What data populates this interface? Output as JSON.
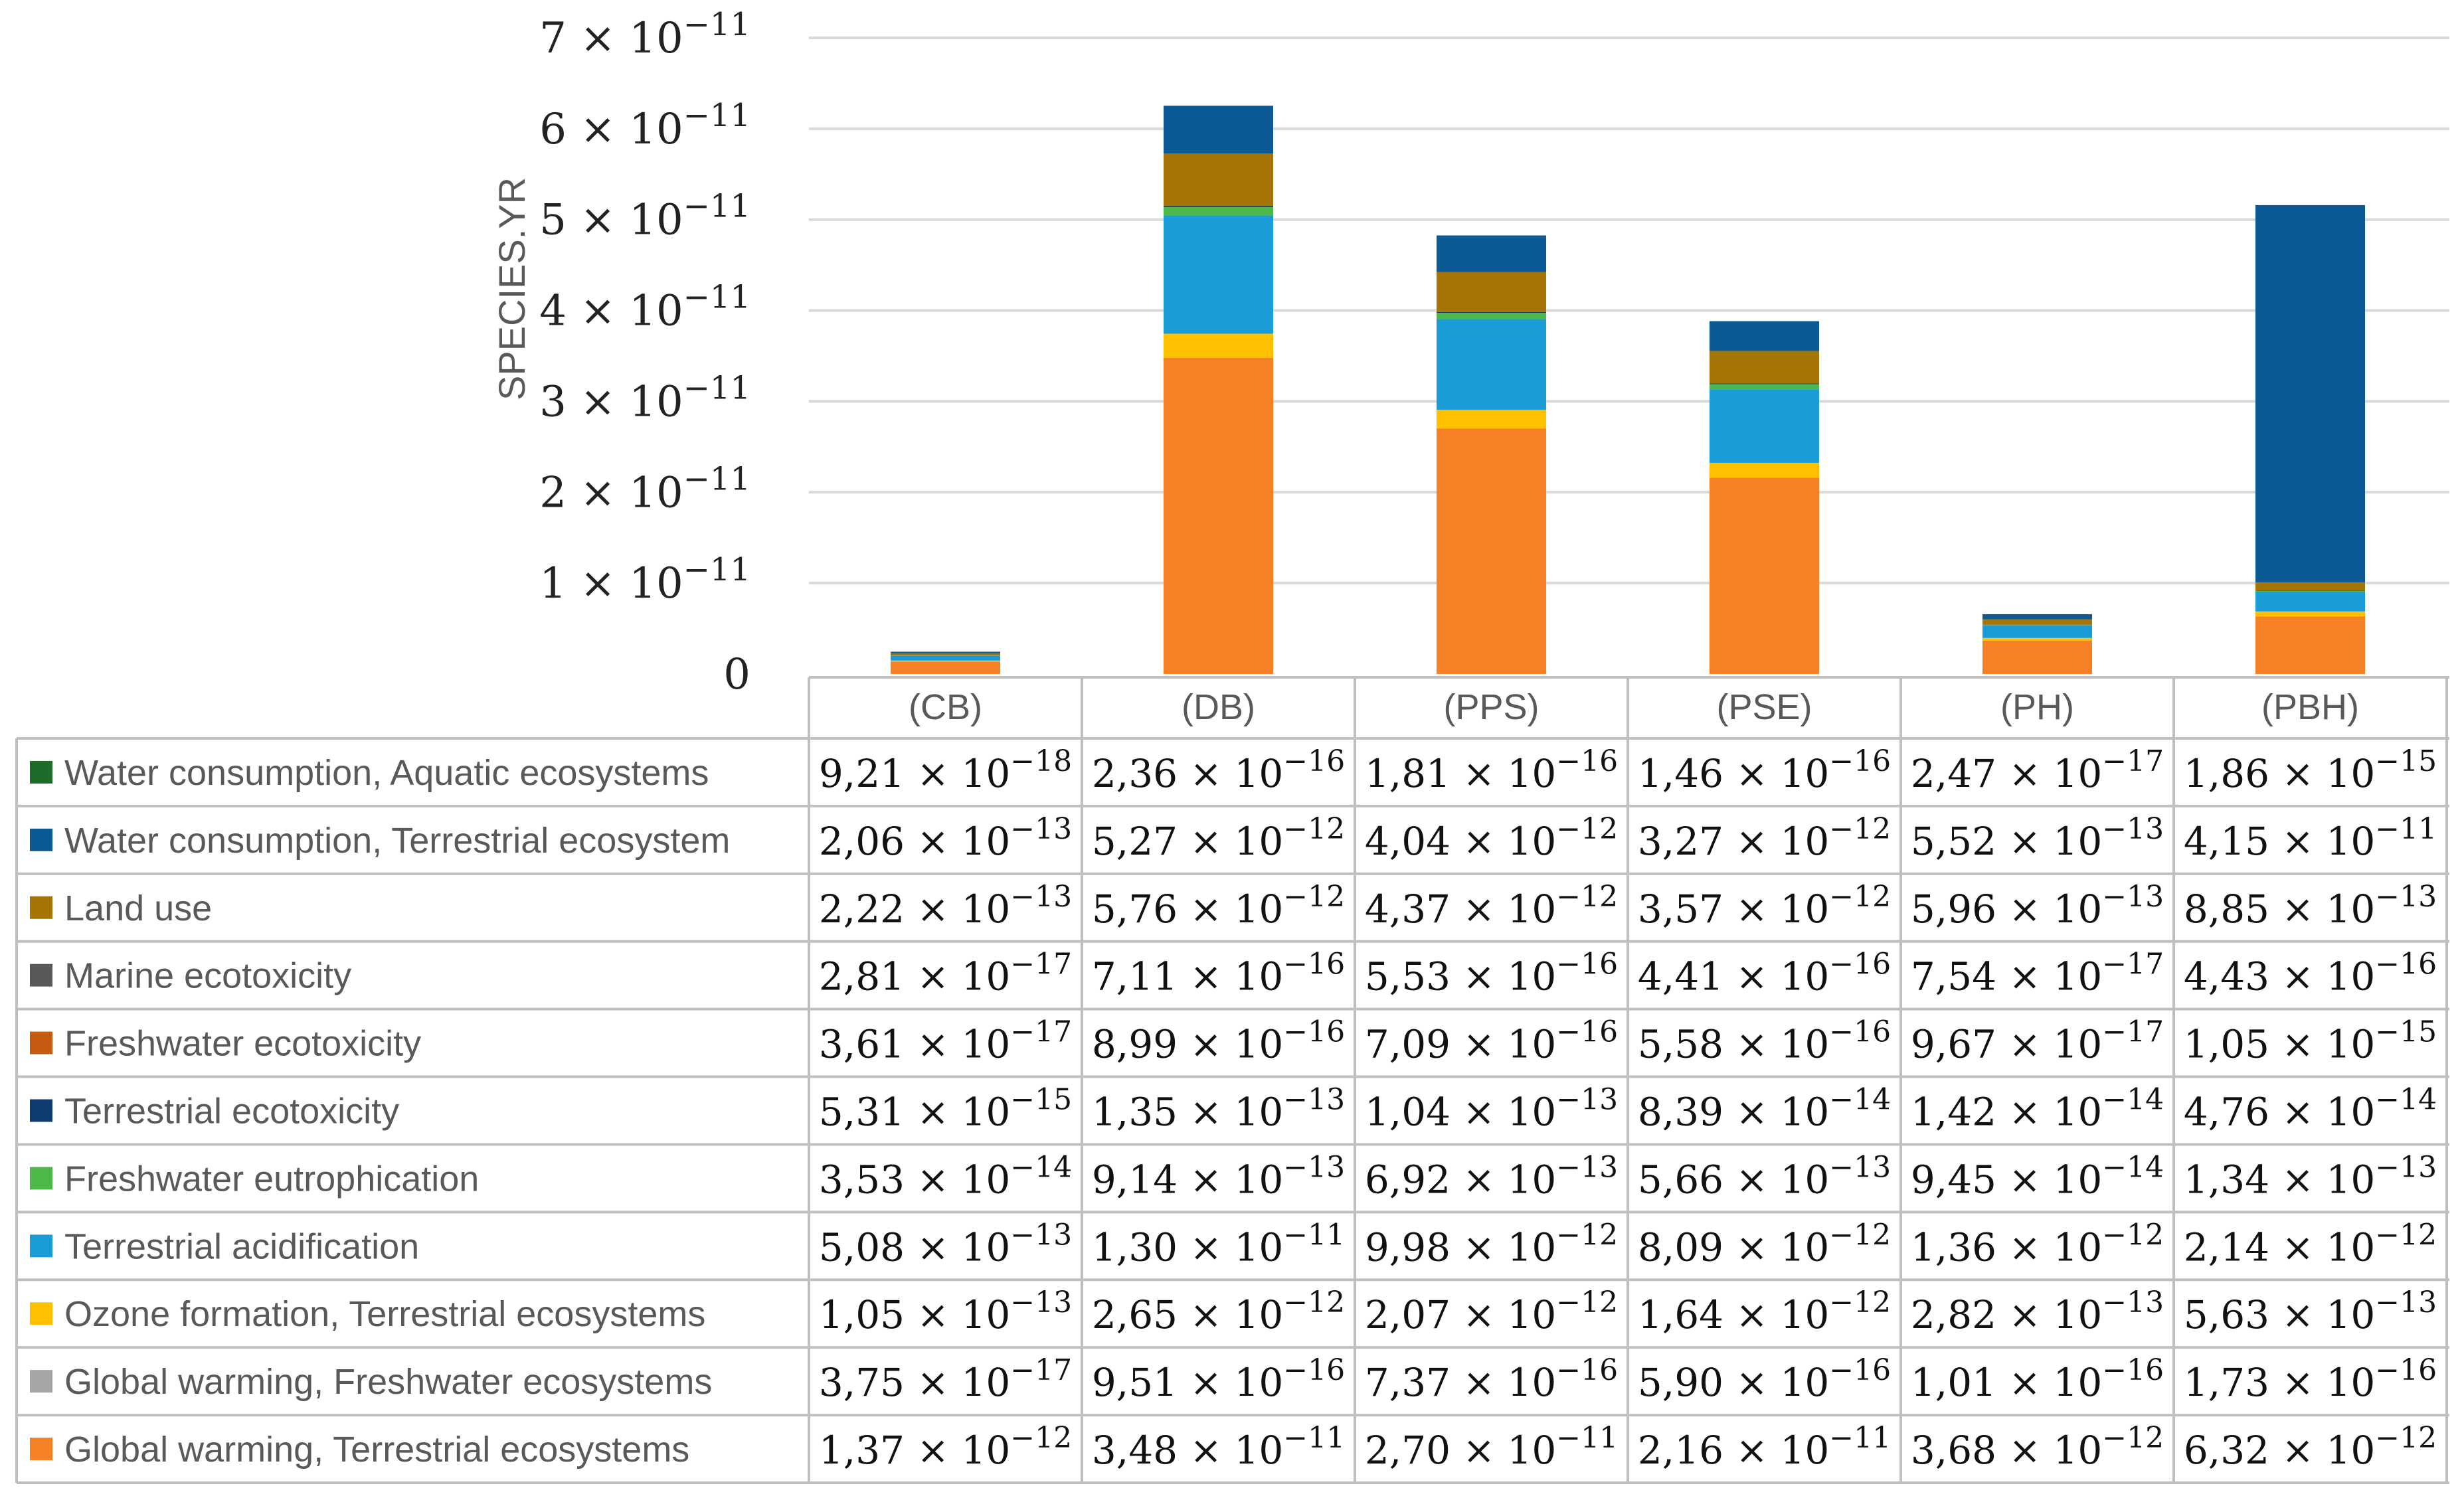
{
  "chart_data": {
    "type": "bar",
    "stacked": true,
    "ylabel": "SPECIES.YR",
    "ylim": [
      0,
      7e-11
    ],
    "grid": true,
    "y_ticks": [
      {
        "value": 0,
        "mantissa": "0",
        "exponent": ""
      },
      {
        "value": 1e-11,
        "mantissa": "1",
        "exponent": "−11"
      },
      {
        "value": 2e-11,
        "mantissa": "2",
        "exponent": "−11"
      },
      {
        "value": 3e-11,
        "mantissa": "3",
        "exponent": "−11"
      },
      {
        "value": 4e-11,
        "mantissa": "4",
        "exponent": "−11"
      },
      {
        "value": 5e-11,
        "mantissa": "5",
        "exponent": "−11"
      },
      {
        "value": 6e-11,
        "mantissa": "6",
        "exponent": "−11"
      },
      {
        "value": 7e-11,
        "mantissa": "7",
        "exponent": "−11"
      }
    ],
    "categories": [
      "(CB)",
      "(DB)",
      "(PPS)",
      "(PSE)",
      "(PH)",
      "(PBH)"
    ],
    "legend_placement": "data-table-left",
    "series": [
      {
        "name": "Global warming, Terrestrial ecosystems",
        "color": "#F58025",
        "values": [
          1.37e-12,
          3.48e-11,
          2.7e-11,
          2.16e-11,
          3.68e-12,
          6.32e-12
        ],
        "labels": [
          [
            "1,37",
            "−12"
          ],
          [
            "3,48",
            "−11"
          ],
          [
            "2,70",
            "−11"
          ],
          [
            "2,16",
            "−11"
          ],
          [
            "3,68",
            "−12"
          ],
          [
            "6,32",
            "−12"
          ]
        ]
      },
      {
        "name": "Global warming, Freshwater ecosystems",
        "color": "#A5A5A5",
        "values": [
          3.75e-17,
          9.51e-16,
          7.37e-16,
          5.9e-16,
          1.01e-16,
          1.73e-16
        ],
        "labels": [
          [
            "3,75",
            "−17"
          ],
          [
            "9,51",
            "−16"
          ],
          [
            "7,37",
            "−16"
          ],
          [
            "5,90",
            "−16"
          ],
          [
            "1,01",
            "−16"
          ],
          [
            "1,73",
            "−16"
          ]
        ]
      },
      {
        "name": "Ozone formation, Terrestrial ecosystems",
        "color": "#FFC000",
        "values": [
          1.05e-13,
          2.65e-12,
          2.07e-12,
          1.64e-12,
          2.82e-13,
          5.63e-13
        ],
        "labels": [
          [
            "1,05",
            "−13"
          ],
          [
            "2,65",
            "−12"
          ],
          [
            "2,07",
            "−12"
          ],
          [
            "1,64",
            "−12"
          ],
          [
            "2,82",
            "−13"
          ],
          [
            "5,63",
            "−13"
          ]
        ]
      },
      {
        "name": "Terrestrial acidification",
        "color": "#1A9CD8",
        "values": [
          5.08e-13,
          1.3e-11,
          9.98e-12,
          8.09e-12,
          1.36e-12,
          2.14e-12
        ],
        "labels": [
          [
            "5,08",
            "−13"
          ],
          [
            "1,30",
            "−11"
          ],
          [
            "9,98",
            "−12"
          ],
          [
            "8,09",
            "−12"
          ],
          [
            "1,36",
            "−12"
          ],
          [
            "2,14",
            "−12"
          ]
        ]
      },
      {
        "name": "Freshwater eutrophication",
        "color": "#4CB848",
        "values": [
          3.53e-14,
          9.14e-13,
          6.92e-13,
          5.66e-13,
          9.45e-14,
          1.34e-13
        ],
        "labels": [
          [
            "3,53",
            "−14"
          ],
          [
            "9,14",
            "−13"
          ],
          [
            "6,92",
            "−13"
          ],
          [
            "5,66",
            "−13"
          ],
          [
            "9,45",
            "−14"
          ],
          [
            "1,34",
            "−13"
          ]
        ]
      },
      {
        "name": "Terrestrial ecotoxicity",
        "color": "#0E3C6E",
        "values": [
          5.31e-15,
          1.35e-13,
          1.04e-13,
          8.39e-14,
          1.42e-14,
          4.76e-14
        ],
        "labels": [
          [
            "5,31",
            "−15"
          ],
          [
            "1,35",
            "−13"
          ],
          [
            "1,04",
            "−13"
          ],
          [
            "8,39",
            "−14"
          ],
          [
            "1,42",
            "−14"
          ],
          [
            "4,76",
            "−14"
          ]
        ]
      },
      {
        "name": "Freshwater ecotoxicity",
        "color": "#C55A11",
        "values": [
          3.61e-17,
          8.99e-16,
          7.09e-16,
          5.58e-16,
          9.67e-17,
          1.05e-15
        ],
        "labels": [
          [
            "3,61",
            "−17"
          ],
          [
            "8,99",
            "−16"
          ],
          [
            "7,09",
            "−16"
          ],
          [
            "5,58",
            "−16"
          ],
          [
            "9,67",
            "−17"
          ],
          [
            "1,05",
            "−15"
          ]
        ]
      },
      {
        "name": "Marine ecotoxicity",
        "color": "#595959",
        "values": [
          2.81e-17,
          7.11e-16,
          5.53e-16,
          4.41e-16,
          7.54e-17,
          4.43e-16
        ],
        "labels": [
          [
            "2,81",
            "−17"
          ],
          [
            "7,11",
            "−16"
          ],
          [
            "5,53",
            "−16"
          ],
          [
            "4,41",
            "−16"
          ],
          [
            "7,54",
            "−17"
          ],
          [
            "4,43",
            "−16"
          ]
        ]
      },
      {
        "name": "Land use",
        "color": "#A57508",
        "values": [
          2.22e-13,
          5.76e-12,
          4.37e-12,
          3.57e-12,
          5.96e-13,
          8.85e-13
        ],
        "labels": [
          [
            "2,22",
            "−13"
          ],
          [
            "5,76",
            "−12"
          ],
          [
            "4,37",
            "−12"
          ],
          [
            "3,57",
            "−12"
          ],
          [
            "5,96",
            "−13"
          ],
          [
            "8,85",
            "−13"
          ]
        ]
      },
      {
        "name": "Water consumption, Terrestrial ecosystem",
        "color": "#0B5A96",
        "values": [
          2.06e-13,
          5.27e-12,
          4.04e-12,
          3.27e-12,
          5.52e-13,
          4.15e-11
        ],
        "labels": [
          [
            "2,06",
            "−13"
          ],
          [
            "5,27",
            "−12"
          ],
          [
            "4,04",
            "−12"
          ],
          [
            "3,27",
            "−12"
          ],
          [
            "5,52",
            "−13"
          ],
          [
            "4,15",
            "−11"
          ]
        ]
      },
      {
        "name": "Water consumption, Aquatic ecosystems",
        "color": "#1E6B2A",
        "values": [
          9.21e-18,
          2.36e-16,
          1.81e-16,
          1.46e-16,
          2.47e-17,
          1.86e-15
        ],
        "labels": [
          [
            "9,21",
            "−18"
          ],
          [
            "2,36",
            "−16"
          ],
          [
            "1,81",
            "−16"
          ],
          [
            "1,46",
            "−16"
          ],
          [
            "2,47",
            "−17"
          ],
          [
            "1,86",
            "−15"
          ]
        ]
      }
    ]
  }
}
